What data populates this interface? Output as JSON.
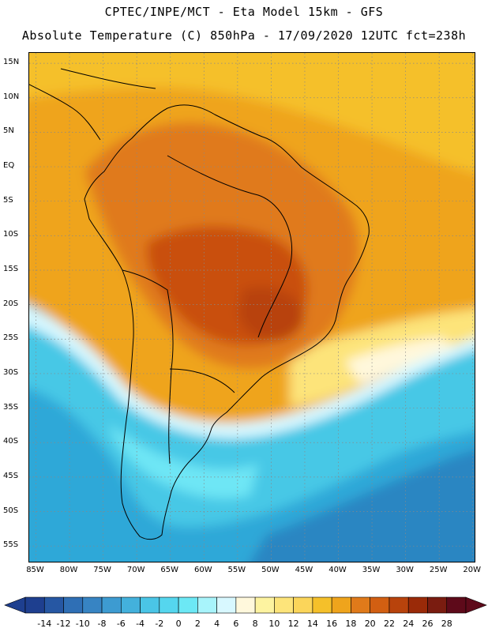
{
  "header": {
    "line1": "CPTEC/INPE/MCT -  Eta Model 15km - GFS",
    "line2": "Absolute Temperature (C) 850hPa - 17/09/2020 12UTC fct=238h"
  },
  "map": {
    "lat_labels": [
      "15N",
      "10N",
      "5N",
      "EQ",
      "5S",
      "10S",
      "15S",
      "20S",
      "25S",
      "30S",
      "35S",
      "40S",
      "45S",
      "50S",
      "55S"
    ],
    "lat_values": [
      15,
      10,
      5,
      0,
      -5,
      -10,
      -15,
      -20,
      -25,
      -30,
      -35,
      -40,
      -45,
      -50,
      -55
    ],
    "lon_labels": [
      "85W",
      "80W",
      "75W",
      "70W",
      "65W",
      "60W",
      "55W",
      "50W",
      "45W",
      "40W",
      "35W",
      "30W",
      "25W",
      "20W"
    ],
    "lon_values": [
      -85,
      -80,
      -75,
      -70,
      -65,
      -60,
      -55,
      -50,
      -45,
      -40,
      -35,
      -30,
      -25,
      -20
    ],
    "lon_range": [
      -86,
      -19.5
    ],
    "lat_range": [
      -57.5,
      16.5
    ],
    "grid": "dotted",
    "colors": {
      "hot_core": "#c94f0d",
      "hot": "#e07a1a",
      "warm": "#efa41c",
      "mild": "#f5c02a",
      "light_yellow": "#fde47a",
      "cream": "#fff8dc",
      "pale_cyan": "#d8f8ff",
      "cyan": "#6ee6f5",
      "light_blue": "#46c8e6",
      "mid_blue": "#2fa8d8",
      "deep_blue": "#2a86c2"
    }
  },
  "colorbar": {
    "labels": [
      "-14",
      "-12",
      "-10",
      "-8",
      "-6",
      "-4",
      "-2",
      "0",
      "2",
      "4",
      "6",
      "8",
      "10",
      "12",
      "14",
      "16",
      "18",
      "20",
      "22",
      "24",
      "26",
      "28"
    ],
    "colors": [
      "#1e3f8f",
      "#2657a3",
      "#2f6fb5",
      "#3784c3",
      "#3d9bd1",
      "#43b1dc",
      "#4ac5e6",
      "#55d6ee",
      "#6ce8f5",
      "#a8f4fb",
      "#d8f8ff",
      "#fff8dc",
      "#fdf3a0",
      "#fde47a",
      "#fbd55a",
      "#f5c02a",
      "#efa41c",
      "#e07a1a",
      "#d25f12",
      "#b8430c",
      "#9a2a08",
      "#7a1c10",
      "#5e0a1a"
    ]
  }
}
